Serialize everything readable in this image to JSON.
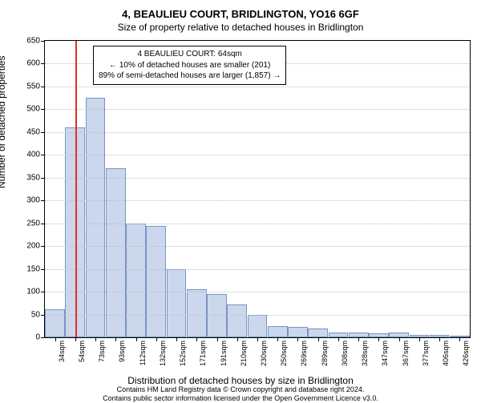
{
  "title": "4, BEAULIEU COURT, BRIDLINGTON, YO16 6GF",
  "subtitle": "Size of property relative to detached houses in Bridlington",
  "ylabel": "Number of detached properties",
  "xlabel": "Distribution of detached houses by size in Bridlington",
  "footer_line1": "Contains HM Land Registry data © Crown copyright and database right 2024.",
  "footer_line2": "Contains public sector information licensed under the Open Government Licence v3.0.",
  "chart": {
    "type": "histogram",
    "ylim": [
      0,
      650
    ],
    "ytick_step": 50,
    "ref_x_idx": 1.5,
    "ref_color": "#e03020",
    "bar_fill": "#cad7ed",
    "bar_stroke": "#7a93c4",
    "grid_color": "#c0c0c0",
    "categories": [
      "34sqm",
      "54sqm",
      "73sqm",
      "93sqm",
      "112sqm",
      "132sqm",
      "152sqm",
      "171sqm",
      "191sqm",
      "210sqm",
      "230sqm",
      "250sqm",
      "269sqm",
      "289sqm",
      "308sqm",
      "328sqm",
      "347sqm",
      "367sqm",
      "377sqm",
      "406sqm",
      "426sqm"
    ],
    "values": [
      62,
      460,
      525,
      370,
      250,
      245,
      150,
      105,
      95,
      72,
      50,
      25,
      22,
      20,
      10,
      10,
      8,
      10,
      5,
      6,
      4
    ]
  },
  "annotation": {
    "l1": "4 BEAULIEU COURT: 64sqm",
    "l2": "← 10% of detached houses are smaller (201)",
    "l3": "89% of semi-detached houses are larger (1,857) →"
  }
}
